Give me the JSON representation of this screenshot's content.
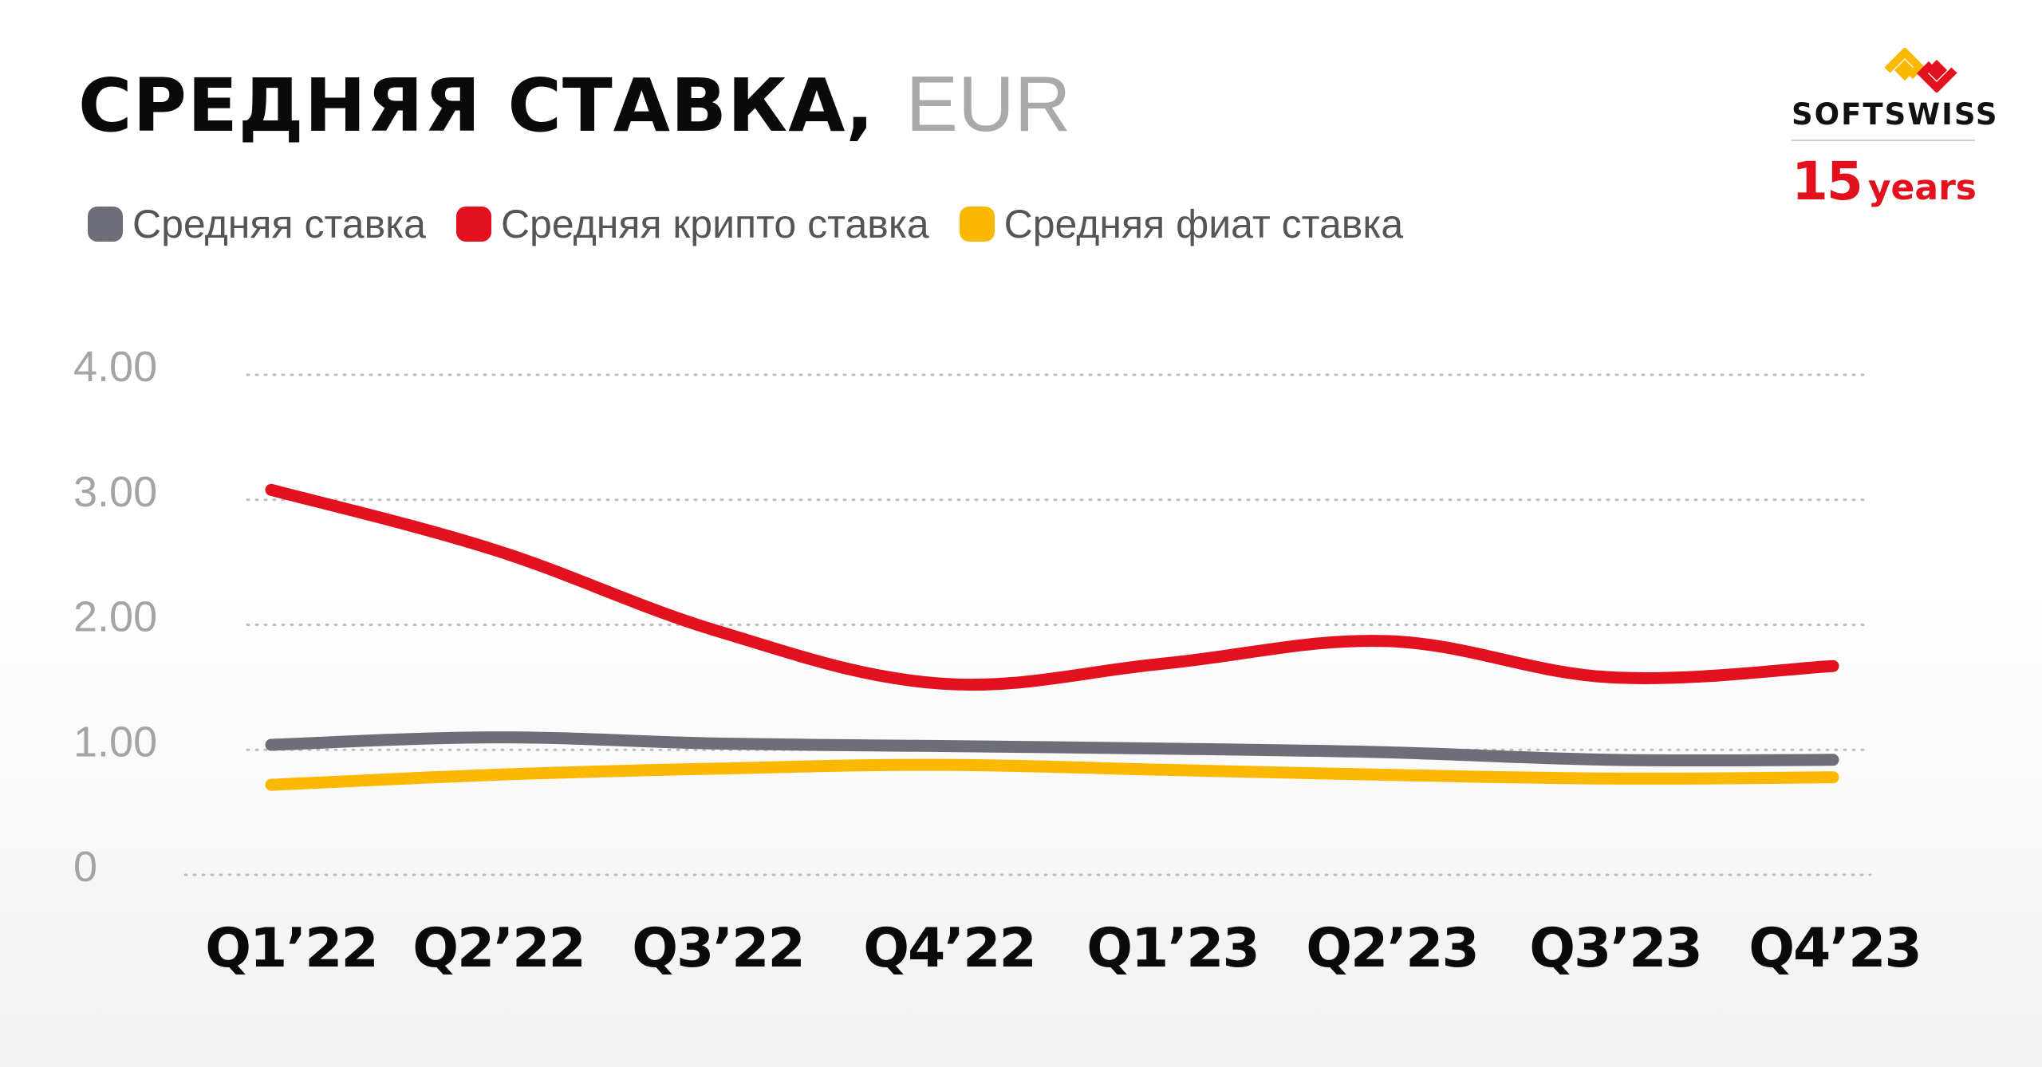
{
  "header": {
    "title": "СРЕДНЯЯ СТАВКА,",
    "unit": "EUR"
  },
  "legend": [
    {
      "label": "Средняя ставка",
      "color": "#6d6e78"
    },
    {
      "label": "Средняя крипто ставка",
      "color": "#e3101e"
    },
    {
      "label": "Средняя фиат ставка",
      "color": "#fbb800"
    }
  ],
  "logo": {
    "icon": "softswiss-logo-icon",
    "name": "SOFTSWISS",
    "years_number": "15",
    "years_word": "years",
    "colors": {
      "orange": "#fbb800",
      "red": "#e3101e"
    }
  },
  "chart_data": {
    "type": "line",
    "categories": [
      "Q1’22",
      "Q2’22",
      "Q3’22",
      "Q4’22",
      "Q1’23",
      "Q2’23",
      "Q3’23",
      "Q4’23"
    ],
    "y_ticks": [
      "4.00",
      "3.00",
      "2.00",
      "1.00",
      "0"
    ],
    "ylim": [
      0,
      4
    ],
    "grid": true,
    "legend_position": "top-left",
    "series": [
      {
        "name": "Средняя крипто ставка",
        "color": "#e3101e",
        "values": [
          3.08,
          2.6,
          1.95,
          1.53,
          1.69,
          1.87,
          1.58,
          1.67
        ]
      },
      {
        "name": "Средняя ставка",
        "color": "#6d6e78",
        "values": [
          1.04,
          1.1,
          1.05,
          1.03,
          1.01,
          0.98,
          0.92,
          0.92
        ]
      },
      {
        "name": "Средняя фиат ставка",
        "color": "#fbb800",
        "values": [
          0.72,
          0.8,
          0.85,
          0.88,
          0.84,
          0.8,
          0.77,
          0.78
        ]
      }
    ]
  }
}
